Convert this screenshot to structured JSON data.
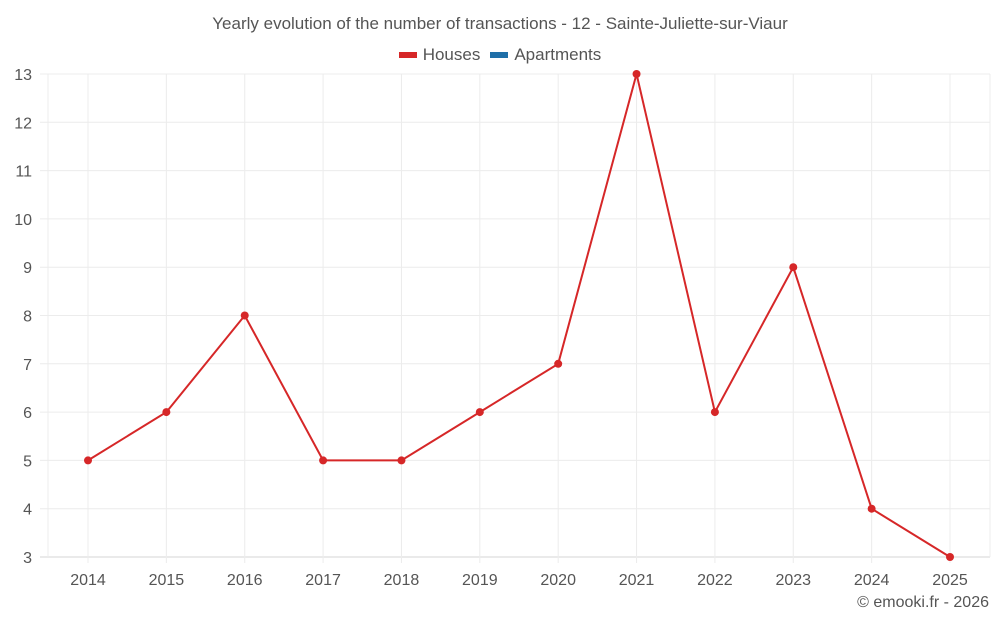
{
  "title": "Yearly evolution of the number of transactions - 12 - Sainte-Juliette-sur-Viaur",
  "legend": [
    {
      "label": "Houses",
      "color": "#d62728"
    },
    {
      "label": "Apartments",
      "color": "#1f6fa8"
    }
  ],
  "credit": "© emooki.fr - 2026",
  "chart_data": {
    "type": "line",
    "title": "Yearly evolution of the number of transactions - 12 - Sainte-Juliette-sur-Viaur",
    "xlabel": "",
    "ylabel": "",
    "x": [
      "2014",
      "2015",
      "2016",
      "2017",
      "2018",
      "2019",
      "2020",
      "2021",
      "2022",
      "2023",
      "2024",
      "2025"
    ],
    "series": [
      {
        "name": "Houses",
        "color": "#d62728",
        "values": [
          5,
          6,
          8,
          5,
          5,
          6,
          7,
          13,
          6,
          9,
          4,
          3
        ]
      },
      {
        "name": "Apartments",
        "color": "#1f6fa8",
        "values": []
      }
    ],
    "ylim": [
      3,
      13
    ],
    "yticks": [
      3,
      4,
      5,
      6,
      7,
      8,
      9,
      10,
      11,
      12,
      13
    ],
    "grid": true,
    "legend_position": "top"
  }
}
